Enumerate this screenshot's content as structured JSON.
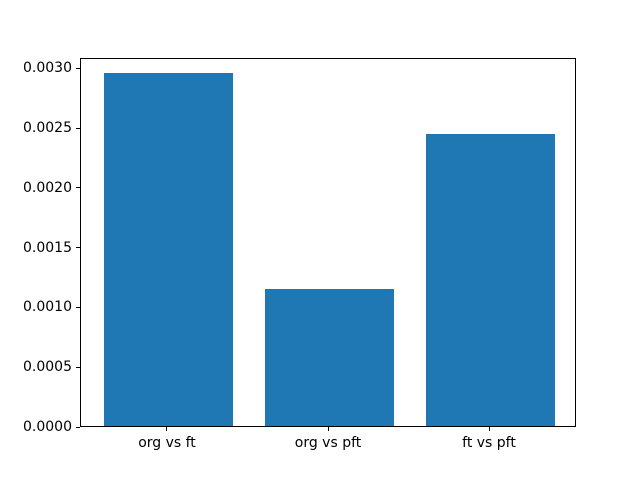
{
  "chart_data": {
    "type": "bar",
    "title": "",
    "xlabel": "",
    "ylabel": "",
    "categories": [
      "org vs ft",
      "org vs pft",
      "ft vs pft"
    ],
    "values": [
      0.00295,
      0.00115,
      0.00244
    ],
    "bar_color": "#1f77b4",
    "bar_width": 0.8,
    "xlim": [
      -0.54,
      2.54
    ],
    "ylim": [
      0,
      0.003087
    ],
    "yticks": [
      0.0,
      0.0005,
      0.001,
      0.0015,
      0.002,
      0.0025,
      0.003
    ],
    "ytick_labels": [
      "0.0000",
      "0.0005",
      "0.0010",
      "0.0015",
      "0.0020",
      "0.0025",
      "0.0030"
    ],
    "grid": false,
    "legend": null,
    "colors": {
      "axis": "#000000",
      "text": "#000000",
      "background": "#ffffff"
    }
  }
}
